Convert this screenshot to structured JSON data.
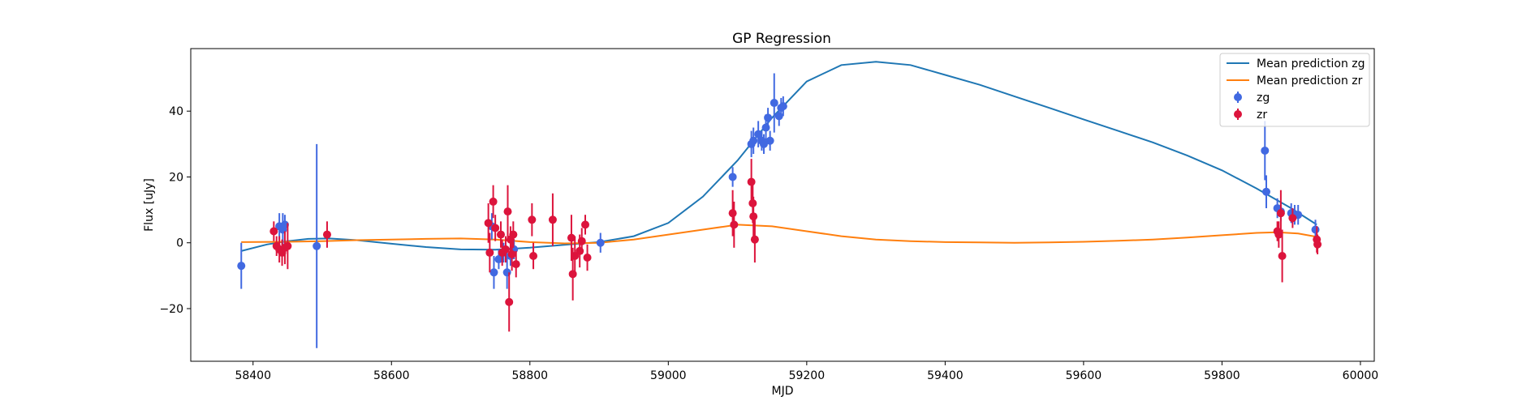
{
  "chart_data": {
    "type": "scatter",
    "title": "GP Regression",
    "xlabel": "MJD",
    "ylabel": "Flux [uJy]",
    "xlim": [
      58310,
      60020
    ],
    "ylim": [
      -36,
      59
    ],
    "xticks": [
      58400,
      58600,
      58800,
      59000,
      59200,
      59400,
      59600,
      59800,
      60000
    ],
    "yticks": [
      -20,
      0,
      20,
      40
    ],
    "grid": false,
    "legend_position": "top-right",
    "colors": {
      "zg_line": "#1f77b4",
      "zr_line": "#ff7f0e",
      "zg_points": "#4169e1",
      "zr_points": "#dc143c"
    },
    "lines": [
      {
        "name": "Mean prediction zg",
        "x": [
          58383,
          58420,
          58450,
          58480,
          58510,
          58550,
          58600,
          58650,
          58700,
          58750,
          58800,
          58850,
          58900,
          58950,
          59000,
          59050,
          59100,
          59150,
          59200,
          59250,
          59300,
          59350,
          59400,
          59450,
          59500,
          59550,
          59600,
          59650,
          59700,
          59750,
          59800,
          59850,
          59900,
          59937
        ],
        "y": [
          -2.5,
          -0.5,
          0.5,
          1.2,
          1.3,
          0.8,
          -0.3,
          -1.3,
          -2.0,
          -2.1,
          -1.5,
          -0.6,
          0.2,
          2.0,
          6.0,
          14.0,
          25.0,
          38.0,
          49.0,
          54.0,
          55.0,
          54.0,
          51.0,
          48.0,
          44.5,
          41.0,
          37.5,
          34.0,
          30.5,
          26.5,
          22.0,
          16.5,
          10.5,
          5.5
        ]
      },
      {
        "name": "Mean prediction zr",
        "x": [
          58383,
          58450,
          58500,
          58550,
          58600,
          58650,
          58700,
          58750,
          58800,
          58850,
          58900,
          58950,
          59000,
          59050,
          59100,
          59150,
          59200,
          59250,
          59300,
          59350,
          59400,
          59450,
          59500,
          59550,
          59600,
          59650,
          59700,
          59750,
          59800,
          59850,
          59880,
          59910,
          59937
        ],
        "y": [
          0.2,
          0.3,
          0.5,
          0.8,
          1.0,
          1.2,
          1.3,
          1.0,
          0.2,
          -0.2,
          0.0,
          1.0,
          2.5,
          4.0,
          5.5,
          5.0,
          3.5,
          2.0,
          1.0,
          0.5,
          0.2,
          0.1,
          0.0,
          0.1,
          0.3,
          0.6,
          1.0,
          1.6,
          2.3,
          3.0,
          3.2,
          2.8,
          1.8
        ]
      }
    ],
    "series": [
      {
        "name": "zg",
        "points": [
          {
            "x": 58383,
            "y": -7,
            "err": 7
          },
          {
            "x": 58438,
            "y": 5,
            "err": 4
          },
          {
            "x": 58443,
            "y": 4,
            "err": 5
          },
          {
            "x": 58446,
            "y": 5.5,
            "err": 3
          },
          {
            "x": 58492,
            "y": -1,
            "err": 31
          },
          {
            "x": 58745,
            "y": 5,
            "err": 4
          },
          {
            "x": 58748,
            "y": -9,
            "err": 5
          },
          {
            "x": 58755,
            "y": -5,
            "err": 3
          },
          {
            "x": 58762,
            "y": -3,
            "err": 3
          },
          {
            "x": 58767,
            "y": -9,
            "err": 5
          },
          {
            "x": 58772,
            "y": -4,
            "err": 3
          },
          {
            "x": 58777,
            "y": -2,
            "err": 3
          },
          {
            "x": 58902,
            "y": 0,
            "err": 3
          },
          {
            "x": 59093,
            "y": 20,
            "err": 3
          },
          {
            "x": 59120,
            "y": 30,
            "err": 4
          },
          {
            "x": 59123,
            "y": 31,
            "err": 4
          },
          {
            "x": 59130,
            "y": 33,
            "err": 4
          },
          {
            "x": 59135,
            "y": 31,
            "err": 3
          },
          {
            "x": 59138,
            "y": 30,
            "err": 3
          },
          {
            "x": 59141,
            "y": 35,
            "err": 4
          },
          {
            "x": 59144,
            "y": 38,
            "err": 3
          },
          {
            "x": 59147,
            "y": 31,
            "err": 3
          },
          {
            "x": 59153,
            "y": 42.5,
            "err": 9
          },
          {
            "x": 59160,
            "y": 38.5,
            "err": 3
          },
          {
            "x": 59163,
            "y": 41,
            "err": 3
          },
          {
            "x": 59166,
            "y": 41.5,
            "err": 3
          },
          {
            "x": 59862,
            "y": 28,
            "err": 9
          },
          {
            "x": 59864,
            "y": 15.5,
            "err": 5
          },
          {
            "x": 59880,
            "y": 10.5,
            "err": 3
          },
          {
            "x": 59885,
            "y": 9.5,
            "err": 3
          },
          {
            "x": 59900,
            "y": 9,
            "err": 3
          },
          {
            "x": 59905,
            "y": 8.5,
            "err": 3
          },
          {
            "x": 59910,
            "y": 8.5,
            "err": 3
          },
          {
            "x": 59935,
            "y": 4,
            "err": 3
          }
        ]
      },
      {
        "name": "zr",
        "points": [
          {
            "x": 58430,
            "y": 3.5,
            "err": 3
          },
          {
            "x": 58434,
            "y": -1,
            "err": 3
          },
          {
            "x": 58438,
            "y": -2,
            "err": 4
          },
          {
            "x": 58442,
            "y": -3,
            "err": 4
          },
          {
            "x": 58446,
            "y": -1.5,
            "err": 5
          },
          {
            "x": 58450,
            "y": -1,
            "err": 7
          },
          {
            "x": 58507,
            "y": 2.5,
            "err": 4
          },
          {
            "x": 58740,
            "y": 6,
            "err": 6
          },
          {
            "x": 58742,
            "y": -3,
            "err": 6
          },
          {
            "x": 58747,
            "y": 12.5,
            "err": 5
          },
          {
            "x": 58750,
            "y": 4.5,
            "err": 4
          },
          {
            "x": 58758,
            "y": 2.5,
            "err": 4
          },
          {
            "x": 58760,
            "y": -3,
            "err": 4
          },
          {
            "x": 58765,
            "y": -2,
            "err": 4
          },
          {
            "x": 58768,
            "y": 9.5,
            "err": 8
          },
          {
            "x": 58770,
            "y": -18,
            "err": 9
          },
          {
            "x": 58772,
            "y": 1,
            "err": 4
          },
          {
            "x": 58774,
            "y": -3.5,
            "err": 5
          },
          {
            "x": 58776,
            "y": 2.5,
            "err": 4
          },
          {
            "x": 58780,
            "y": -6.5,
            "err": 4
          },
          {
            "x": 58803,
            "y": 7,
            "err": 5
          },
          {
            "x": 58805,
            "y": -4,
            "err": 4
          },
          {
            "x": 58833,
            "y": 7,
            "err": 8
          },
          {
            "x": 58860,
            "y": 1.5,
            "err": 7
          },
          {
            "x": 58862,
            "y": -9.5,
            "err": 8
          },
          {
            "x": 58865,
            "y": -4,
            "err": 6
          },
          {
            "x": 58872,
            "y": -2.5,
            "err": 5
          },
          {
            "x": 58875,
            "y": 0.5,
            "err": 4
          },
          {
            "x": 58880,
            "y": 5.5,
            "err": 3
          },
          {
            "x": 58883,
            "y": -4.5,
            "err": 4
          },
          {
            "x": 59093,
            "y": 9,
            "err": 7
          },
          {
            "x": 59095,
            "y": 5.5,
            "err": 7
          },
          {
            "x": 59120,
            "y": 18.5,
            "err": 7
          },
          {
            "x": 59122,
            "y": 12,
            "err": 6
          },
          {
            "x": 59123,
            "y": 8,
            "err": 6
          },
          {
            "x": 59125,
            "y": 1,
            "err": 7
          },
          {
            "x": 59880,
            "y": 3.5,
            "err": 3
          },
          {
            "x": 59882,
            "y": 2.5,
            "err": 4
          },
          {
            "x": 59885,
            "y": 9,
            "err": 7
          },
          {
            "x": 59887,
            "y": -4,
            "err": 8
          },
          {
            "x": 59902,
            "y": 7.5,
            "err": 3
          },
          {
            "x": 59937,
            "y": 1,
            "err": 4
          },
          {
            "x": 59938,
            "y": -0.5,
            "err": 3
          }
        ]
      }
    ]
  }
}
